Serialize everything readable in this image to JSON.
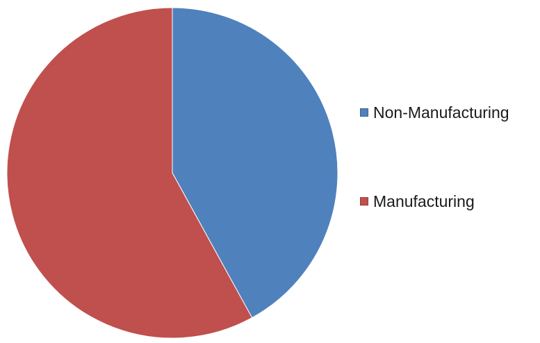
{
  "chart_data": {
    "type": "pie",
    "categories": [
      "Non-Manufacturing",
      "Manufacturing"
    ],
    "values": [
      42,
      58
    ],
    "colors": [
      "#4f81bd",
      "#c0504d"
    ],
    "legend_position": "right"
  }
}
